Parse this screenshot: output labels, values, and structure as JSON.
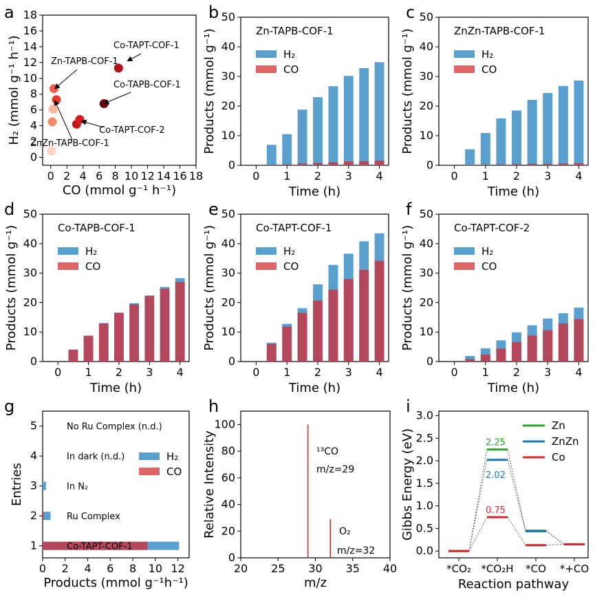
{
  "colors": {
    "h2": "#5aa0cf",
    "co": "#b5475c",
    "co_legend": "#e06666",
    "zn": "#2ca02c",
    "znzn": "#1f77b4",
    "co_line": "#d62728",
    "ms": "#c0392b"
  },
  "panels": {
    "a": {
      "letter": "a"
    },
    "b": {
      "letter": "b"
    },
    "c": {
      "letter": "c"
    },
    "d": {
      "letter": "d"
    },
    "e": {
      "letter": "e"
    },
    "f": {
      "letter": "f"
    },
    "g": {
      "letter": "g"
    },
    "h": {
      "letter": "h"
    },
    "i": {
      "letter": "i"
    }
  },
  "chart_data": [
    {
      "id": "a",
      "type": "scatter",
      "xlabel": "CO (mmol g⁻¹ h⁻¹)",
      "ylabel": "H₂ (mmol g⁻¹ h⁻¹)",
      "xlim": [
        -1,
        18
      ],
      "ylim": [
        -1,
        18
      ],
      "xticks": [
        "0",
        "2",
        "4",
        "6",
        "8",
        "10",
        "12",
        "14",
        "16",
        "18"
      ],
      "yticks": [
        "0",
        "2",
        "4",
        "6",
        "8",
        "10",
        "12",
        "14",
        "16",
        "18"
      ],
      "points": [
        {
          "x": 0.1,
          "y": 0.8,
          "color": "#fcd5c4"
        },
        {
          "x": 0.2,
          "y": 4.5,
          "color": "#f6886a"
        },
        {
          "x": 0.3,
          "y": 6.1,
          "color": "#fbb69c"
        },
        {
          "x": 0.4,
          "y": 8.7,
          "color": "#f4614d"
        },
        {
          "x": 0.7,
          "y": 7.3,
          "color": "#e03c2f"
        },
        {
          "x": 3.2,
          "y": 4.2,
          "color": "#c2161b"
        },
        {
          "x": 3.6,
          "y": 4.8,
          "color": "#d42020"
        },
        {
          "x": 8.4,
          "y": 11.3,
          "color": "#b01217"
        },
        {
          "x": 6.6,
          "y": 6.8,
          "color": "#6b010e"
        }
      ],
      "annotations": [
        {
          "text": "Co-TAPT-COF-1",
          "target_x": 9.5,
          "target_y": 12.2
        },
        {
          "text": "Zn-TAPB-COF-1",
          "target_x": 0.5,
          "target_y": 8.7
        },
        {
          "text": "Co-TAPB-COF-1",
          "target_x": 6.6,
          "target_y": 6.8
        },
        {
          "text": "Co-TAPT-COF-2",
          "target_x": 3.8,
          "target_y": 4.6
        },
        {
          "text": "ZnZn-TAPB-COF-1",
          "target_x": 0.5,
          "target_y": 7.2
        }
      ]
    },
    {
      "id": "b",
      "type": "bar",
      "title": "Zn-TAPB-COF-1",
      "xlabel": "Time (h)",
      "ylabel": "Products (mmol g⁻¹)",
      "ylim": [
        0,
        50
      ],
      "xlim": [
        -0.5,
        4.3
      ],
      "xticks": [
        "0",
        "1",
        "2",
        "3",
        "4"
      ],
      "yticks": [
        "0",
        "10",
        "20",
        "30",
        "40",
        "50"
      ],
      "x": [
        0.5,
        1,
        1.5,
        2,
        2.5,
        3,
        3.5,
        4
      ],
      "series": [
        {
          "name": "H₂",
          "values": [
            6.9,
            10.5,
            18.8,
            23.0,
            26.7,
            30.2,
            32.8,
            34.8
          ]
        },
        {
          "name": "CO",
          "values": [
            0.2,
            0.3,
            0.6,
            0.8,
            1.0,
            1.3,
            1.4,
            1.6
          ]
        }
      ]
    },
    {
      "id": "c",
      "type": "bar",
      "title": "ZnZn-TAPB-COF-1",
      "xlabel": "Time (h)",
      "ylabel": "Products (mmol g⁻¹)",
      "ylim": [
        0,
        50
      ],
      "xlim": [
        -0.5,
        4.3
      ],
      "xticks": [
        "0",
        "1",
        "2",
        "3",
        "4"
      ],
      "yticks": [
        "0",
        "10",
        "20",
        "30",
        "40",
        "50"
      ],
      "x": [
        0.5,
        1,
        1.5,
        2,
        2.5,
        3,
        3.5,
        4
      ],
      "series": [
        {
          "name": "H₂",
          "values": [
            5.4,
            10.9,
            15.8,
            18.5,
            22.1,
            24.4,
            26.8,
            28.6
          ]
        },
        {
          "name": "CO",
          "values": [
            0.1,
            0.2,
            0.3,
            0.4,
            0.5,
            0.5,
            0.6,
            0.7
          ]
        }
      ]
    },
    {
      "id": "d",
      "type": "bar",
      "title": "Co-TAPB-COF-1",
      "xlabel": "Time (h)",
      "ylabel": "Products (mmol g⁻¹)",
      "ylim": [
        0,
        50
      ],
      "xlim": [
        -0.5,
        4.3
      ],
      "xticks": [
        "0",
        "1",
        "2",
        "3",
        "4"
      ],
      "yticks": [
        "0",
        "10",
        "20",
        "30",
        "40",
        "50"
      ],
      "x": [
        0.5,
        1,
        1.5,
        2,
        2.5,
        3,
        3.5,
        4
      ],
      "series": [
        {
          "name": "H₂",
          "values": [
            4.1,
            8.8,
            13.1,
            16.6,
            19.8,
            22.4,
            25.3,
            28.3
          ]
        },
        {
          "name": "CO",
          "values": [
            4.0,
            8.7,
            12.8,
            16.5,
            19.4,
            22.3,
            24.7,
            27.0
          ]
        }
      ]
    },
    {
      "id": "e",
      "type": "bar",
      "title": "Co-TAPT-COF-1",
      "xlabel": "Time (h)",
      "ylabel": "Products (mmol g⁻¹)",
      "ylim": [
        0,
        50
      ],
      "xlim": [
        -0.5,
        4.3
      ],
      "xticks": [
        "0",
        "1",
        "2",
        "3",
        "4"
      ],
      "yticks": [
        "0",
        "10",
        "20",
        "30",
        "40",
        "50"
      ],
      "x": [
        0.5,
        1,
        1.5,
        2,
        2.5,
        3,
        3.5,
        4
      ],
      "series": [
        {
          "name": "H₂",
          "values": [
            6.4,
            12.8,
            18.1,
            26.2,
            32.8,
            36.6,
            40.8,
            43.5
          ]
        },
        {
          "name": "CO",
          "values": [
            6.0,
            11.9,
            16.5,
            20.7,
            24.4,
            28.0,
            31.1,
            34.2
          ]
        }
      ]
    },
    {
      "id": "f",
      "type": "bar",
      "title": "Co-TAPT-COF-2",
      "xlabel": "Time (h)",
      "ylabel": "Products (mmol g⁻¹)",
      "ylim": [
        0,
        50
      ],
      "xlim": [
        -0.5,
        4.3
      ],
      "xticks": [
        "0",
        "1",
        "2",
        "3",
        "4"
      ],
      "yticks": [
        "0",
        "10",
        "20",
        "30",
        "40",
        "50"
      ],
      "x": [
        0.5,
        1,
        1.5,
        2,
        2.5,
        3,
        3.5,
        4
      ],
      "series": [
        {
          "name": "H₂",
          "values": [
            1.9,
            4.5,
            7.2,
            9.9,
            12.3,
            14.6,
            16.4,
            18.3
          ]
        },
        {
          "name": "CO",
          "values": [
            0.8,
            2.4,
            4.4,
            6.6,
            8.8,
            10.6,
            12.9,
            14.4
          ]
        }
      ]
    },
    {
      "id": "g",
      "type": "bar",
      "orientation": "horizontal",
      "xlabel": "Products (mmol g⁻¹h⁻¹)",
      "ylabel": "Entries",
      "xlim": [
        0,
        13
      ],
      "ylim": [
        0.6,
        5.5
      ],
      "xticks": [
        "0",
        "2",
        "4",
        "6",
        "8",
        "10",
        "12"
      ],
      "yticks": [
        "1",
        "2",
        "3",
        "4",
        "5"
      ],
      "entries": [
        {
          "y": 1,
          "label": "Co-TAPT-COF-1",
          "h2": 12.1,
          "co": 9.3
        },
        {
          "y": 2,
          "label": "Ru Complex",
          "h2": 0.7,
          "co": 0.05
        },
        {
          "y": 3,
          "label": "In N₂",
          "h2": 0.3,
          "co": 0
        },
        {
          "y": 4,
          "label": "In dark (n.d.)",
          "h2": 0,
          "co": 0
        },
        {
          "y": 5,
          "label": "No Ru Complex (n.d.)",
          "h2": 0,
          "co": 0
        }
      ],
      "legend": [
        "H₂",
        "CO"
      ]
    },
    {
      "id": "h",
      "type": "bar",
      "subtype": "mass-spectrum",
      "xlabel": "m/z",
      "ylabel": "Relative Intensity",
      "xlim": [
        20,
        40
      ],
      "ylim": [
        0,
        110
      ],
      "xticks": [
        "20",
        "25",
        "30",
        "35",
        "40"
      ],
      "yticks": [
        "0",
        "20",
        "40",
        "60",
        "80",
        "100"
      ],
      "peaks": [
        {
          "mz": 29,
          "intensity": 100,
          "label1": "¹³CO",
          "label2": "m/z=29"
        },
        {
          "mz": 32,
          "intensity": 29,
          "label1": "O₂",
          "label2": "m/z=32"
        }
      ]
    },
    {
      "id": "i",
      "type": "line",
      "subtype": "energy-diagram",
      "xlabel": "Reaction pathway",
      "ylabel": "Gibbs Energy (eV)",
      "ylim": [
        -0.15,
        3.1
      ],
      "yticks": [
        "0.0",
        "0.5",
        "1.0",
        "1.5",
        "2.0",
        "2.5",
        "3.0"
      ],
      "categories": [
        "*CO₂",
        "*CO₂H",
        "*CO",
        "*+CO"
      ],
      "series": [
        {
          "name": "Zn",
          "values": [
            0.0,
            2.25,
            0.45,
            0.15
          ]
        },
        {
          "name": "ZnZn",
          "values": [
            0.0,
            2.02,
            0.44,
            0.15
          ]
        },
        {
          "name": "Co",
          "values": [
            0.0,
            0.75,
            0.13,
            0.15
          ]
        }
      ],
      "value_labels": [
        "2.25",
        "2.02",
        "0.75"
      ]
    }
  ]
}
